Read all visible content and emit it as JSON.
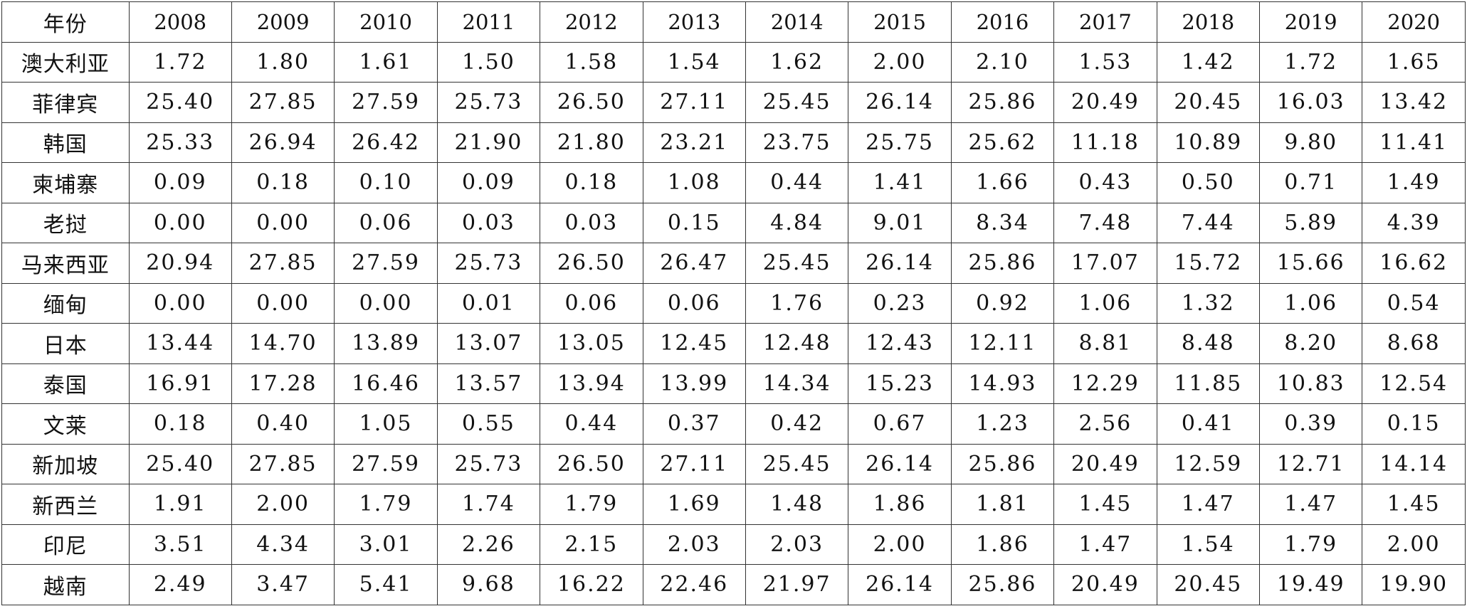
{
  "chart_data": {
    "type": "table",
    "header_label": "年份",
    "years": [
      "2008",
      "2009",
      "2010",
      "2011",
      "2012",
      "2013",
      "2014",
      "2015",
      "2016",
      "2017",
      "2018",
      "2019",
      "2020"
    ],
    "rows": [
      {
        "country": "澳大利亚",
        "values": [
          "1.72",
          "1.80",
          "1.61",
          "1.50",
          "1.58",
          "1.54",
          "1.62",
          "2.00",
          "2.10",
          "1.53",
          "1.42",
          "1.72",
          "1.65"
        ]
      },
      {
        "country": "菲律宾",
        "values": [
          "25.40",
          "27.85",
          "27.59",
          "25.73",
          "26.50",
          "27.11",
          "25.45",
          "26.14",
          "25.86",
          "20.49",
          "20.45",
          "16.03",
          "13.42"
        ]
      },
      {
        "country": "韩国",
        "values": [
          "25.33",
          "26.94",
          "26.42",
          "21.90",
          "21.80",
          "23.21",
          "23.75",
          "25.75",
          "25.62",
          "11.18",
          "10.89",
          "9.80",
          "11.41"
        ]
      },
      {
        "country": "柬埔寨",
        "values": [
          "0.09",
          "0.18",
          "0.10",
          "0.09",
          "0.18",
          "1.08",
          "0.44",
          "1.41",
          "1.66",
          "0.43",
          "0.50",
          "0.71",
          "1.49"
        ]
      },
      {
        "country": "老挝",
        "values": [
          "0.00",
          "0.00",
          "0.06",
          "0.03",
          "0.03",
          "0.15",
          "4.84",
          "9.01",
          "8.34",
          "7.48",
          "7.44",
          "5.89",
          "4.39"
        ]
      },
      {
        "country": "马来西亚",
        "values": [
          "20.94",
          "27.85",
          "27.59",
          "25.73",
          "26.50",
          "26.47",
          "25.45",
          "26.14",
          "25.86",
          "17.07",
          "15.72",
          "15.66",
          "16.62"
        ]
      },
      {
        "country": "缅甸",
        "values": [
          "0.00",
          "0.00",
          "0.00",
          "0.01",
          "0.06",
          "0.06",
          "1.76",
          "0.23",
          "0.92",
          "1.06",
          "1.32",
          "1.06",
          "0.54"
        ]
      },
      {
        "country": "日本",
        "values": [
          "13.44",
          "14.70",
          "13.89",
          "13.07",
          "13.05",
          "12.45",
          "12.48",
          "12.43",
          "12.11",
          "8.81",
          "8.48",
          "8.20",
          "8.68"
        ]
      },
      {
        "country": "泰国",
        "values": [
          "16.91",
          "17.28",
          "16.46",
          "13.57",
          "13.94",
          "13.99",
          "14.34",
          "15.23",
          "14.93",
          "12.29",
          "11.85",
          "10.83",
          "12.54"
        ]
      },
      {
        "country": "文莱",
        "values": [
          "0.18",
          "0.40",
          "1.05",
          "0.55",
          "0.44",
          "0.37",
          "0.42",
          "0.67",
          "1.23",
          "2.56",
          "0.41",
          "0.39",
          "0.15"
        ]
      },
      {
        "country": "新加坡",
        "values": [
          "25.40",
          "27.85",
          "27.59",
          "25.73",
          "26.50",
          "27.11",
          "25.45",
          "26.14",
          "25.86",
          "20.49",
          "12.59",
          "12.71",
          "14.14"
        ]
      },
      {
        "country": "新西兰",
        "values": [
          "1.91",
          "2.00",
          "1.79",
          "1.74",
          "1.79",
          "1.69",
          "1.48",
          "1.86",
          "1.81",
          "1.45",
          "1.47",
          "1.47",
          "1.45"
        ]
      },
      {
        "country": "印尼",
        "values": [
          "3.51",
          "4.34",
          "3.01",
          "2.26",
          "2.15",
          "2.03",
          "2.03",
          "2.00",
          "1.86",
          "1.47",
          "1.54",
          "1.79",
          "2.00"
        ]
      },
      {
        "country": "越南",
        "values": [
          "2.49",
          "3.47",
          "5.41",
          "9.68",
          "16.22",
          "22.46",
          "21.97",
          "26.14",
          "25.86",
          "20.49",
          "20.45",
          "19.49",
          "19.90"
        ]
      }
    ]
  }
}
